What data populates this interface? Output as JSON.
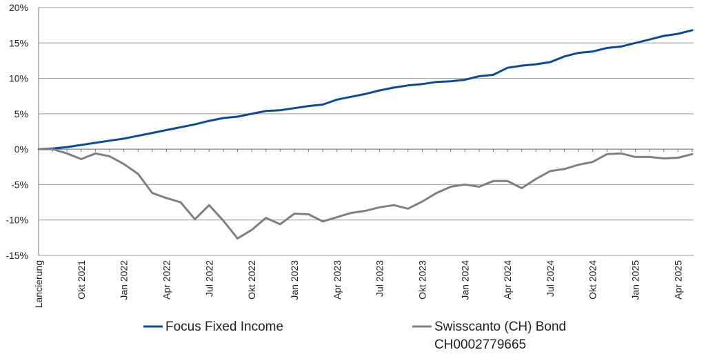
{
  "chart_data": {
    "type": "line",
    "title": "",
    "xlabel": "",
    "ylabel": "",
    "ylim": [
      -15,
      20
    ],
    "y_ticks": [
      20,
      15,
      10,
      5,
      0,
      -5,
      -10,
      -15
    ],
    "y_tick_labels": [
      "20%",
      "15%",
      "10%",
      "5%",
      "0%",
      "-5%",
      "-10%",
      "-15%"
    ],
    "y_unit": "%",
    "grid": "horizontal",
    "legend_position": "bottom",
    "x_tick_labels": [
      {
        "label": "Lancierung",
        "index": 0
      },
      {
        "label": "Okt 2021",
        "index": 3
      },
      {
        "label": "Jan 2022",
        "index": 6
      },
      {
        "label": "Apr 2022",
        "index": 9
      },
      {
        "label": "Jul 2022",
        "index": 12
      },
      {
        "label": "Okt 2022",
        "index": 15
      },
      {
        "label": "Jan 2023",
        "index": 18
      },
      {
        "label": "Apr 2023",
        "index": 21
      },
      {
        "label": "Jul 2023",
        "index": 24
      },
      {
        "label": "Okt 2023",
        "index": 27
      },
      {
        "label": "Jan 2024",
        "index": 30
      },
      {
        "label": "Apr 2024",
        "index": 33
      },
      {
        "label": "Jul 2024",
        "index": 36
      },
      {
        "label": "Okt 2024",
        "index": 39
      },
      {
        "label": "Jan 2025",
        "index": 42
      },
      {
        "label": "Apr 2025",
        "index": 45
      }
    ],
    "x_count": 47,
    "series": [
      {
        "name": "Focus Fixed Income",
        "color": "#0a4a96",
        "values": [
          0,
          0.1,
          0.3,
          0.6,
          0.9,
          1.2,
          1.5,
          1.9,
          2.3,
          2.7,
          3.1,
          3.5,
          4.0,
          4.4,
          4.6,
          5.0,
          5.4,
          5.5,
          5.8,
          6.1,
          6.3,
          7.0,
          7.4,
          7.8,
          8.3,
          8.7,
          9.0,
          9.2,
          9.5,
          9.6,
          9.8,
          10.3,
          10.5,
          11.5,
          11.8,
          12.0,
          12.3,
          13.1,
          13.6,
          13.8,
          14.3,
          14.5,
          15.0,
          15.5,
          16.0,
          16.3,
          16.8
        ]
      },
      {
        "name": "Swisscanto (CH) Bond CH0002779665",
        "name_lines": [
          "Swisscanto (CH) Bond",
          "CH0002779665"
        ],
        "color": "#808080",
        "values": [
          0,
          0.0,
          -0.6,
          -1.4,
          -0.6,
          -1.0,
          -2.1,
          -3.5,
          -6.2,
          -6.9,
          -7.5,
          -9.9,
          -7.9,
          -10.1,
          -12.6,
          -11.4,
          -9.7,
          -10.6,
          -9.1,
          -9.2,
          -10.2,
          -9.6,
          -9.0,
          -8.7,
          -8.2,
          -7.9,
          -8.4,
          -7.4,
          -6.2,
          -5.3,
          -5.0,
          -5.3,
          -4.5,
          -4.5,
          -5.5,
          -4.2,
          -3.1,
          -2.8,
          -2.2,
          -1.8,
          -0.7,
          -0.6,
          -1.1,
          -1.1,
          -1.3,
          -1.2,
          -0.7
        ]
      }
    ]
  }
}
